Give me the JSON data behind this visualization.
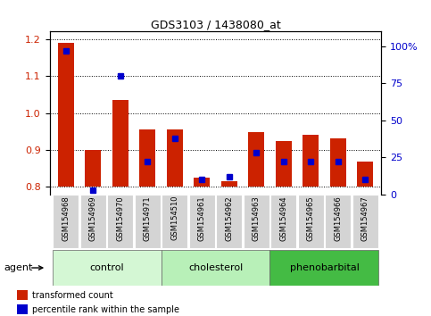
{
  "title": "GDS3103 / 1438080_at",
  "samples": [
    "GSM154968",
    "GSM154969",
    "GSM154970",
    "GSM154971",
    "GSM154510",
    "GSM154961",
    "GSM154962",
    "GSM154963",
    "GSM154964",
    "GSM154965",
    "GSM154966",
    "GSM154967"
  ],
  "red_values": [
    1.19,
    0.9,
    1.035,
    0.955,
    0.955,
    0.825,
    0.815,
    0.948,
    0.925,
    0.942,
    0.932,
    0.868
  ],
  "blue_values_pct": [
    97,
    3,
    80,
    22,
    38,
    10,
    12,
    28,
    22,
    22,
    22,
    10
  ],
  "red_base": 0.8,
  "ylim_left": [
    0.78,
    1.22
  ],
  "ylim_right": [
    0,
    110
  ],
  "yticks_left": [
    0.8,
    0.9,
    1.0,
    1.1,
    1.2
  ],
  "yticks_right": [
    0,
    25,
    50,
    75,
    100
  ],
  "ytick_labels_right": [
    "0",
    "25",
    "50",
    "75",
    "100%"
  ],
  "groups": [
    {
      "label": "control",
      "start": 0,
      "end": 3,
      "color": "#d4f7d4"
    },
    {
      "label": "cholesterol",
      "start": 4,
      "end": 7,
      "color": "#b8f0b8"
    },
    {
      "label": "phenobarbital",
      "start": 8,
      "end": 11,
      "color": "#44bb44"
    }
  ],
  "bar_width": 0.6,
  "red_color": "#cc2200",
  "blue_color": "#0000cc",
  "legend_red": "transformed count",
  "legend_blue": "percentile rank within the sample",
  "xlabel_group": "agent"
}
